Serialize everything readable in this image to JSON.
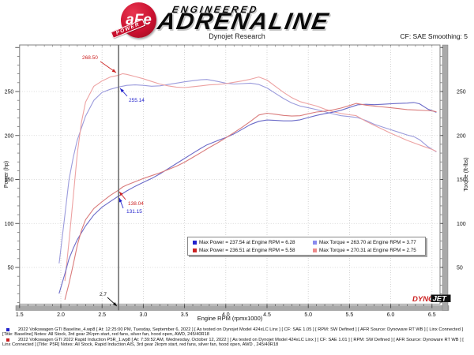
{
  "header": {
    "logo_text": "aFe",
    "logo_sub": "POWER",
    "brand_top": "ENGINEERED",
    "brand_main": "ADRENALINE",
    "subtitle": "Dynojet Research",
    "smoothing": "CF: SAE Smoothing: 5"
  },
  "chart_data": {
    "type": "line",
    "title": "",
    "xlabel": "Engine RPM (rpmx1000)",
    "ylabel_left": "Power (hp)",
    "ylabel_right": "Torque (ft-lbs)",
    "xlim": [
      1.5,
      6.6
    ],
    "ylim": [
      9,
      303
    ],
    "xticks": [
      1.5,
      2.0,
      2.5,
      3.0,
      3.5,
      4.0,
      4.5,
      5.0,
      5.5,
      6.0,
      6.5
    ],
    "yticks": [
      50,
      100,
      150,
      200,
      250
    ],
    "grid": true,
    "legend_position": "bottom-center",
    "cursor": {
      "rpm": 2.7,
      "label": "2.7"
    },
    "watermark": {
      "part1": "DYNO",
      "part2": "JET"
    },
    "series": [
      {
        "id": "baseline-torque",
        "name": "Baseline Torque (ft-lbs)",
        "axis": "right",
        "color": "#9b9bdc",
        "x": [
          1.98,
          2.05,
          2.1,
          2.15,
          2.2,
          2.3,
          2.4,
          2.5,
          2.6,
          2.7,
          2.8,
          2.9,
          3.0,
          3.1,
          3.2,
          3.3,
          3.4,
          3.5,
          3.6,
          3.7,
          3.77,
          3.9,
          4.0,
          4.1,
          4.2,
          4.3,
          4.4,
          4.5,
          4.6,
          4.7,
          4.8,
          4.9,
          5.0,
          5.1,
          5.2,
          5.3,
          5.4,
          5.5,
          5.6,
          5.7,
          5.8,
          5.9,
          6.0,
          6.1,
          6.2,
          6.28,
          6.35,
          6.45,
          6.55
        ],
        "y": [
          55,
          110,
          150,
          175,
          195,
          222,
          240,
          249,
          252.5,
          255.1,
          257,
          257.5,
          257,
          256,
          256.5,
          258,
          259.5,
          261,
          262.3,
          263.4,
          263.7,
          261.5,
          259.5,
          258.5,
          259,
          259.5,
          258,
          254,
          248,
          242,
          237,
          233.5,
          231.5,
          229.5,
          227,
          224.5,
          222.5,
          221.5,
          220.3,
          217,
          212.8,
          209.6,
          206.6,
          203.6,
          200.6,
          198.7,
          195.2,
          187.3,
          181.6
        ]
      },
      {
        "id": "p5r-torque",
        "name": "P5R Torque (ft-lbs)",
        "axis": "right",
        "color": "#eda2a2",
        "x": [
          2.05,
          2.1,
          2.15,
          2.2,
          2.25,
          2.3,
          2.4,
          2.5,
          2.6,
          2.7,
          2.75,
          2.8,
          2.9,
          3.0,
          3.1,
          3.2,
          3.3,
          3.4,
          3.5,
          3.6,
          3.7,
          3.8,
          3.9,
          4.0,
          4.1,
          4.2,
          4.3,
          4.4,
          4.5,
          4.6,
          4.7,
          4.8,
          4.9,
          5.0,
          5.1,
          5.2,
          5.3,
          5.4,
          5.5,
          5.58,
          5.7,
          5.8,
          5.9,
          6.0,
          6.1,
          6.2,
          6.3,
          6.4,
          6.5,
          6.55
        ],
        "y": [
          35,
          80,
          130,
          180,
          215,
          238,
          256,
          262,
          266.5,
          268.5,
          270.3,
          269.5,
          267,
          264.5,
          261.5,
          258.5,
          256.5,
          255,
          254.5,
          255.5,
          256.5,
          257.5,
          258,
          259,
          260.5,
          262,
          264,
          266.5,
          263,
          256,
          249,
          243,
          238.5,
          236,
          233.5,
          230,
          227,
          225,
          223.5,
          222.6,
          216.1,
          211.5,
          207,
          202.6,
          198.5,
          194.4,
          190.9,
          187.5,
          184.2,
          182
        ]
      },
      {
        "id": "baseline-power",
        "name": "Baseline Power (hp)",
        "axis": "left",
        "color": "#6b6bc8",
        "x": [
          1.98,
          2.05,
          2.1,
          2.15,
          2.2,
          2.3,
          2.4,
          2.5,
          2.6,
          2.7,
          2.8,
          2.9,
          3.0,
          3.1,
          3.2,
          3.3,
          3.4,
          3.5,
          3.6,
          3.7,
          3.77,
          3.9,
          4.0,
          4.1,
          4.2,
          4.3,
          4.4,
          4.5,
          4.6,
          4.7,
          4.8,
          4.9,
          5.0,
          5.1,
          5.2,
          5.3,
          5.4,
          5.5,
          5.6,
          5.7,
          5.8,
          5.9,
          6.0,
          6.1,
          6.2,
          6.28,
          6.35,
          6.45,
          6.55
        ],
        "y": [
          20.7,
          42.9,
          60,
          71.6,
          81.7,
          97.2,
          109.7,
          118.5,
          125,
          131.2,
          137,
          142.2,
          146.8,
          151.1,
          156.3,
          162.1,
          168,
          173.9,
          179.8,
          185.5,
          189.3,
          194.2,
          197.6,
          201.8,
          207.1,
          212.5,
          216.1,
          217.6,
          217.2,
          216.6,
          216.6,
          217.8,
          220.4,
          222.8,
          224.8,
          226.5,
          228.7,
          231.9,
          234.9,
          235.5,
          235,
          235.5,
          236,
          236.5,
          236.8,
          237.5,
          236,
          230,
          226.5
        ]
      },
      {
        "id": "p5r-power",
        "name": "P5R Power (hp)",
        "axis": "left",
        "color": "#d97b7b",
        "x": [
          2.05,
          2.1,
          2.15,
          2.2,
          2.25,
          2.3,
          2.4,
          2.5,
          2.6,
          2.7,
          2.75,
          2.8,
          2.9,
          3.0,
          3.1,
          3.2,
          3.3,
          3.4,
          3.5,
          3.6,
          3.7,
          3.8,
          3.9,
          4.0,
          4.1,
          4.2,
          4.3,
          4.4,
          4.5,
          4.6,
          4.7,
          4.8,
          4.9,
          5.0,
          5.1,
          5.2,
          5.3,
          5.4,
          5.5,
          5.58,
          5.7,
          5.8,
          5.9,
          6.0,
          6.1,
          6.2,
          6.3,
          6.4,
          6.5,
          6.55
        ],
        "y": [
          13.7,
          32,
          53.2,
          75.4,
          92.1,
          104.2,
          117,
          124.7,
          131.9,
          138,
          141.5,
          143.7,
          147.4,
          151.1,
          154.3,
          157.5,
          161.2,
          165.1,
          169.6,
          175.1,
          180.7,
          186.3,
          191.6,
          197.3,
          203.3,
          209.5,
          216.1,
          223.3,
          225.3,
          224.2,
          222.8,
          222.1,
          222.5,
          224.7,
          226.7,
          227.7,
          229.1,
          231.3,
          234,
          236.5,
          234.5,
          233.5,
          232.5,
          231.5,
          230.5,
          229.5,
          229,
          228.5,
          228,
          227
        ]
      }
    ],
    "annotations": [
      {
        "id": "torque-p5r-at-cursor",
        "text": "268.50",
        "color": "#cc2222"
      },
      {
        "id": "torque-baseline-at-cursor",
        "text": "255.14",
        "color": "#2222cc"
      },
      {
        "id": "power-p5r-at-cursor",
        "text": "138.04",
        "color": "#cc2222"
      },
      {
        "id": "power-baseline-at-cursor",
        "text": "131.15",
        "color": "#2222cc"
      },
      {
        "id": "cursor-rpm",
        "text": "2.7",
        "color": "#111111"
      }
    ]
  },
  "legend": {
    "entries": [
      {
        "color": "#2222cc",
        "text": "Max Power = 237.54 at Engine RPM = 6.28"
      },
      {
        "color": "#8a8aee",
        "text": "Max Torque = 263.70 at Engine RPM = 3.77"
      },
      {
        "color": "#cc2222",
        "text": "Max Power = 236.51 at Engine RPM = 5.58"
      },
      {
        "color": "#ee8a8a",
        "text": "Max Torque = 270.31 at Engine RPM = 2.75"
      }
    ]
  },
  "runs": [
    {
      "color": "#2222cc",
      "text": "2022 Volkswagen GTI Baseline_4.wp8 [ At: 12:25:00 PM, Tuesday, September 6, 2022 ] [ As tested on Dynojet Model 424xLC Linx ] [ CF: SAE 1.05 ] [ RPM: SW Defined ] [ AFR Source: Dynoware RT WB ] [ Linx Connected ] [Title: Baseline]  Notes: All Stock, 3rd gear 2Krpm start, red fans, silver fan, hood open, AWD, 245/40R18"
    },
    {
      "color": "#cc2222",
      "text": "2022 Volkswagen GTI 2022 Rapid Induction P5R_1.wp8 [ At: 7:39:52 AM, Wednesday, October 12, 2022 ] [ As tested on Dynojet Model 424xLC Linx ] [ CF: SAE 1.01 ] [ RPM: SW Defined ] [ AFR Source: Dynoware RT WB ] [ Linx Connected ] [Title: P5R]  Notes: All Stock, Rapid Induction AIS, 3rd gear 2krpm start, red fans, silver fan, hood open, AWD , 245/40R18"
    }
  ]
}
